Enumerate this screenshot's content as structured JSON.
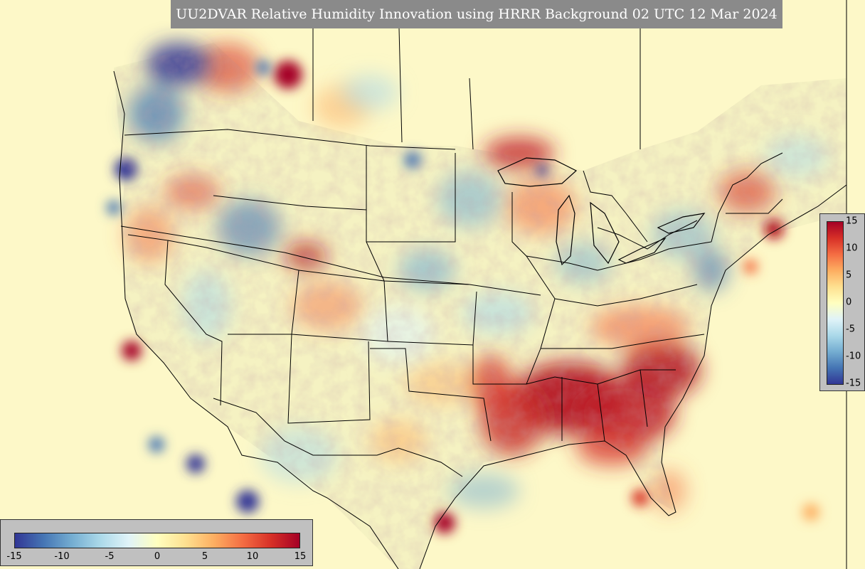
{
  "title": "UU2DVAR Relative Humidity Innovation using HRRR Background 02 UTC 12 Mar 2024",
  "map": {
    "region": "CONUS",
    "variable": "Relative Humidity Innovation",
    "background_color": "#fdf8c8",
    "border_color": "#000000"
  },
  "colorbar": {
    "min": -15,
    "max": 15,
    "ticks_right": [
      "15",
      "10",
      "5",
      "0",
      "-5",
      "-10",
      "-15"
    ],
    "ticks_bottom": [
      "-15",
      "-10",
      "-5",
      "0",
      "5",
      "10",
      "15"
    ],
    "colors": [
      "#313695",
      "#4575b4",
      "#74add1",
      "#abd9e9",
      "#e0f3f8",
      "#ffffbf",
      "#fee090",
      "#fdae61",
      "#f46d43",
      "#d73027",
      "#a50026"
    ]
  }
}
